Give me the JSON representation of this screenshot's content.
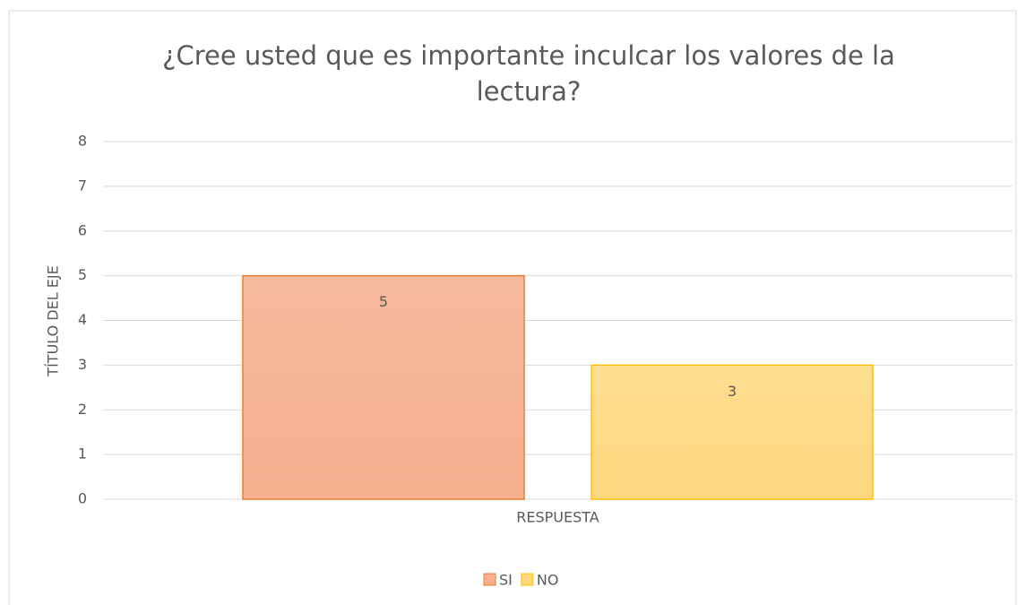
{
  "chart_data": {
    "type": "bar",
    "title": "¿Cree usted que es importante inculcar los valores de la lectura?",
    "y_label": "TÍTULO DEL EJE",
    "categories": [
      "RESPUESTA"
    ],
    "series": [
      {
        "name": "SI",
        "color": "#f5ae8e",
        "border_color": "#ed7d31",
        "values": [
          5
        ]
      },
      {
        "name": "NO",
        "color": "#fed87e",
        "border_color": "#ffc000",
        "values": [
          3
        ]
      }
    ],
    "ylim": [
      0,
      8
    ],
    "yticks": [
      0,
      1,
      2,
      3,
      4,
      5,
      6,
      7,
      8
    ],
    "grid": true,
    "legend": "bottom",
    "data_labels": true
  }
}
